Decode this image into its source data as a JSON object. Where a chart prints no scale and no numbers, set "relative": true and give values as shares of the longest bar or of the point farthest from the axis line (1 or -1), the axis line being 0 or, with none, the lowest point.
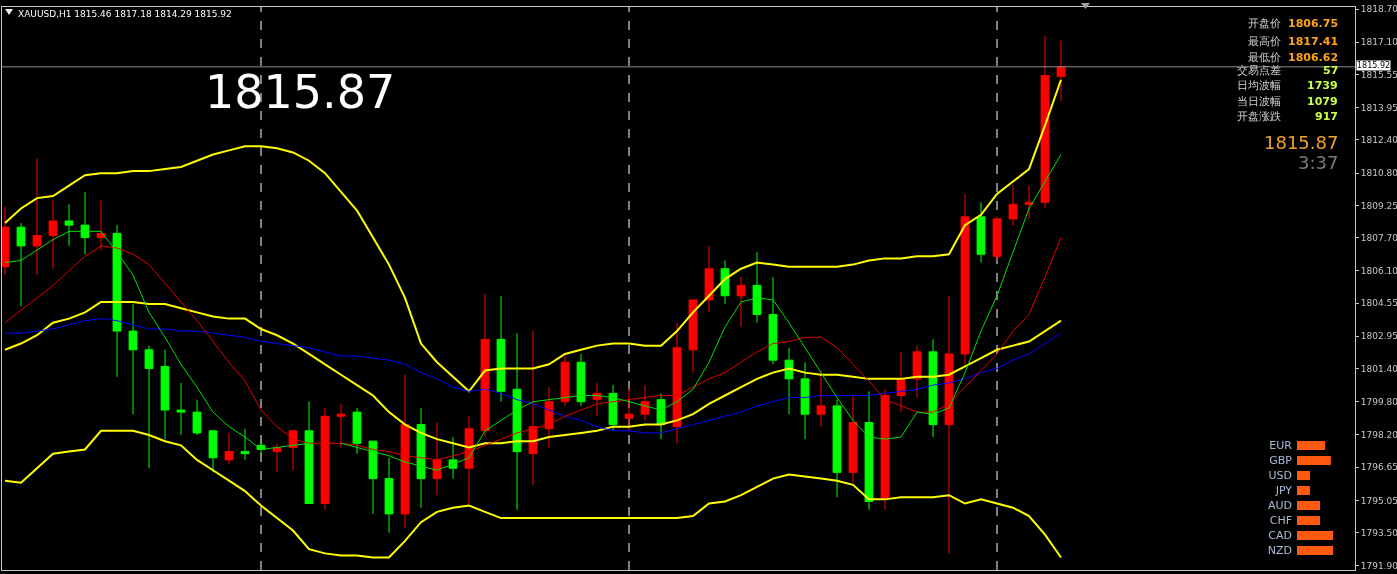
{
  "chart_data": [
    {
      "type": "candlestick",
      "title": "XAUUSD,H1 1815.46 1817.18 1814.29 1815.92",
      "annotations": [
        "1815.87",
        "开盘价",
        "1806.75",
        "最高价",
        "1817.41",
        "最低价",
        "1806.62",
        "交易点差",
        "57",
        "日均波幅",
        "1739",
        "当日波幅",
        "1079",
        "开盘涨跌",
        "917",
        "1815.87",
        "3:37"
      ],
      "categories": [
        null,
        null,
        null,
        null,
        null,
        null,
        null,
        null,
        null,
        null,
        null,
        null,
        null,
        null,
        null,
        null,
        null,
        null,
        null,
        null,
        null,
        null,
        null,
        null,
        null,
        null,
        null,
        null,
        null,
        null,
        null,
        null,
        null,
        null,
        null,
        null,
        null,
        null,
        null,
        null,
        null,
        null,
        null,
        null,
        null,
        null,
        null,
        null,
        null,
        null,
        null,
        null,
        null,
        null,
        null,
        null,
        null,
        null,
        null,
        null,
        null,
        null,
        null,
        null,
        null,
        null,
        null
      ],
      "ohlc": [
        [
          1806.3,
          1809.2,
          1805.9,
          1808.2
        ],
        [
          1808.2,
          1808.4,
          1804.4,
          1807.3
        ],
        [
          1807.3,
          1811.5,
          1805.9,
          1807.8
        ],
        [
          1807.8,
          1809.5,
          1806.2,
          1808.5
        ],
        [
          1808.5,
          1809.3,
          1807.3,
          1808.3
        ],
        [
          1808.3,
          1809.9,
          1806.9,
          1807.7
        ],
        [
          1807.7,
          1809.5,
          1807.1,
          1807.9
        ],
        [
          1807.9,
          1808.3,
          1801.0,
          1803.2
        ],
        [
          1803.2,
          1804.5,
          1799.2,
          1802.3
        ],
        [
          1802.3,
          1802.5,
          1796.6,
          1801.4
        ],
        [
          1801.5,
          1802.3,
          1798.0,
          1799.4
        ],
        [
          1799.4,
          1800.7,
          1798.2,
          1799.3
        ],
        [
          1799.3,
          1799.9,
          1798.2,
          1798.3
        ],
        [
          1798.4,
          1798.4,
          1796.4,
          1797.1
        ],
        [
          1797.0,
          1798.3,
          1796.8,
          1797.4
        ],
        [
          1797.4,
          1798.5,
          1797.0,
          1797.3
        ],
        [
          1797.7,
          1797.9,
          1797.3,
          1797.5
        ],
        [
          1797.4,
          1797.8,
          1796.4,
          1797.6
        ],
        [
          1797.6,
          1798.4,
          1796.5,
          1798.4
        ],
        [
          1798.4,
          1799.8,
          1794.9,
          1794.9
        ],
        [
          1794.9,
          1799.5,
          1794.6,
          1799.1
        ],
        [
          1799.1,
          1799.7,
          1797.6,
          1799.2
        ],
        [
          1799.3,
          1799.5,
          1797.3,
          1797.8
        ],
        [
          1797.9,
          1797.9,
          1794.4,
          1796.1
        ],
        [
          1796.1,
          1797.1,
          1793.5,
          1794.4
        ],
        [
          1794.4,
          1801.1,
          1793.7,
          1798.7
        ],
        [
          1798.7,
          1799.5,
          1794.7,
          1796.1
        ],
        [
          1796.1,
          1798.8,
          1795.3,
          1797.0
        ],
        [
          1797.0,
          1798.1,
          1796.1,
          1796.6
        ],
        [
          1796.6,
          1799.1,
          1794.9,
          1798.5
        ],
        [
          1798.4,
          1805.0,
          1798.1,
          1802.8
        ],
        [
          1802.8,
          1804.9,
          1799.8,
          1800.3
        ],
        [
          1800.4,
          1803.1,
          1794.6,
          1797.4
        ],
        [
          1797.3,
          1803.2,
          1795.8,
          1798.6
        ],
        [
          1798.5,
          1800.5,
          1797.6,
          1799.8
        ],
        [
          1799.8,
          1802.0,
          1799.6,
          1801.7
        ],
        [
          1801.7,
          1802.1,
          1799.6,
          1799.8
        ],
        [
          1799.9,
          1800.7,
          1799.1,
          1800.2
        ],
        [
          1800.2,
          1800.6,
          1798.4,
          1798.7
        ],
        [
          1799.0,
          1800.5,
          1798.4,
          1799.2
        ],
        [
          1799.2,
          1800.6,
          1798.9,
          1799.8
        ],
        [
          1799.9,
          1800.2,
          1798.0,
          1798.7
        ],
        [
          1798.6,
          1803.6,
          1797.8,
          1802.4
        ],
        [
          1802.3,
          1804.7,
          1801.2,
          1804.7
        ],
        [
          1804.7,
          1807.3,
          1804.1,
          1806.2
        ],
        [
          1806.2,
          1806.6,
          1804.5,
          1804.9
        ],
        [
          1804.9,
          1805.8,
          1803.4,
          1805.4
        ],
        [
          1805.4,
          1807.0,
          1803.6,
          1804.0
        ],
        [
          1804.0,
          1805.8,
          1801.6,
          1801.8
        ],
        [
          1801.8,
          1802.4,
          1799.2,
          1800.9
        ],
        [
          1800.9,
          1801.7,
          1798.0,
          1799.2
        ],
        [
          1799.2,
          1801.3,
          1798.6,
          1799.6
        ],
        [
          1799.6,
          1799.9,
          1795.2,
          1796.4
        ],
        [
          1796.4,
          1800.1,
          1795.9,
          1798.8
        ],
        [
          1798.8,
          1800.3,
          1794.6,
          1795.0
        ],
        [
          1795.1,
          1800.4,
          1794.6,
          1800.1
        ],
        [
          1800.1,
          1802.2,
          1799.3,
          1800.9
        ],
        [
          1800.9,
          1802.5,
          1800.0,
          1802.2
        ],
        [
          1802.2,
          1802.8,
          1798.1,
          1798.7
        ],
        [
          1798.7,
          1804.9,
          1792.5,
          1802.1
        ],
        [
          1802.1,
          1809.8,
          1801.6,
          1808.7
        ],
        [
          1808.7,
          1809.4,
          1806.5,
          1806.9
        ],
        [
          1806.8,
          1808.7,
          1806.6,
          1808.6
        ],
        [
          1808.6,
          1810.2,
          1808.3,
          1809.3
        ],
        [
          1809.3,
          1810.2,
          1808.6,
          1809.4
        ],
        [
          1809.4,
          1817.4,
          1809.1,
          1815.5
        ],
        [
          1815.46,
          1817.18,
          1814.29,
          1815.92
        ]
      ],
      "series": [
        {
          "type": "line",
          "color": "#ffff00",
          "values": [
            1808.4,
            1809.1,
            1809.6,
            1809.7,
            1810.2,
            1810.7,
            1810.8,
            1810.8,
            1810.9,
            1810.9,
            1811.0,
            1811.1,
            1811.4,
            1811.7,
            1811.9,
            1812.1,
            1812.1,
            1812.0,
            1811.8,
            1811.4,
            1810.8,
            1809.9,
            1809.0,
            1807.7,
            1806.4,
            1804.8,
            1802.6,
            1801.7,
            1801.0,
            1800.3,
            1801.3,
            1801.4,
            1801.4,
            1801.4,
            1801.6,
            1802.1,
            1802.3,
            1802.5,
            1802.6,
            1802.6,
            1802.5,
            1802.5,
            1803.2,
            1804.1,
            1804.9,
            1805.7,
            1806.2,
            1806.5,
            1806.4,
            1806.3,
            1806.3,
            1806.3,
            1806.3,
            1806.4,
            1806.6,
            1806.7,
            1806.7,
            1806.8,
            1806.8,
            1806.9,
            1808.3,
            1808.8,
            1809.8,
            1810.4,
            1811.0,
            1813.1,
            1815.3
          ]
        },
        {
          "type": "line",
          "color": "#ffff00",
          "values": [
            1802.3,
            1802.6,
            1803.0,
            1803.6,
            1803.8,
            1804.1,
            1804.6,
            1804.6,
            1804.6,
            1804.5,
            1804.5,
            1804.3,
            1804.1,
            1803.9,
            1803.8,
            1803.8,
            1803.3,
            1803.0,
            1802.6,
            1802.1,
            1801.6,
            1801.1,
            1800.6,
            1800.1,
            1799.3,
            1798.7,
            1798.3,
            1798.0,
            1797.8,
            1797.6,
            1797.8,
            1797.8,
            1797.9,
            1797.9,
            1798.1,
            1798.2,
            1798.3,
            1798.4,
            1798.6,
            1798.6,
            1798.7,
            1798.7,
            1798.9,
            1799.2,
            1799.7,
            1800.1,
            1800.5,
            1800.9,
            1801.2,
            1801.4,
            1801.2,
            1801.1,
            1801.1,
            1801.0,
            1800.9,
            1800.9,
            1800.9,
            1801.0,
            1801.0,
            1801.1,
            1801.5,
            1801.9,
            1802.3,
            1802.5,
            1802.7,
            1803.2,
            1803.7
          ]
        },
        {
          "type": "line",
          "color": "#ffff00",
          "values": [
            1796.0,
            1795.9,
            1796.6,
            1797.3,
            1797.4,
            1797.5,
            1798.4,
            1798.4,
            1798.4,
            1798.2,
            1797.9,
            1797.7,
            1797.0,
            1796.5,
            1796.0,
            1795.5,
            1794.8,
            1794.2,
            1793.6,
            1792.7,
            1792.5,
            1792.4,
            1792.4,
            1792.3,
            1792.3,
            1793.1,
            1794.0,
            1794.5,
            1794.7,
            1794.8,
            1794.5,
            1794.2,
            1794.2,
            1794.2,
            1794.2,
            1794.2,
            1794.2,
            1794.2,
            1794.2,
            1794.2,
            1794.2,
            1794.2,
            1794.2,
            1794.3,
            1794.9,
            1795.0,
            1795.3,
            1795.7,
            1796.1,
            1796.3,
            1796.2,
            1796.1,
            1796.0,
            1795.8,
            1795.1,
            1795.1,
            1795.2,
            1795.2,
            1795.2,
            1795.3,
            1794.9,
            1795.1,
            1794.9,
            1794.7,
            1794.3,
            1793.4,
            1792.3
          ]
        },
        {
          "type": "line",
          "color": "#0000ff",
          "values": [
            1803.1,
            1803.1,
            1803.2,
            1803.3,
            1803.5,
            1803.7,
            1803.8,
            1803.7,
            1803.5,
            1803.3,
            1803.3,
            1803.2,
            1803.2,
            1803.1,
            1803.0,
            1802.9,
            1802.7,
            1802.6,
            1802.5,
            1802.4,
            1802.2,
            1802.0,
            1802.0,
            1801.9,
            1801.8,
            1801.6,
            1801.2,
            1800.9,
            1800.5,
            1800.3,
            1800.4,
            1800.2,
            1799.9,
            1799.7,
            1799.4,
            1799.1,
            1798.9,
            1798.6,
            1798.4,
            1798.4,
            1798.3,
            1798.3,
            1798.5,
            1798.7,
            1798.9,
            1799.1,
            1799.3,
            1799.6,
            1799.8,
            1800.0,
            1800.0,
            1800.1,
            1800.1,
            1800.1,
            1800.1,
            1800.2,
            1800.3,
            1800.4,
            1800.6,
            1800.7,
            1800.9,
            1801.2,
            1801.4,
            1801.8,
            1802.1,
            1802.6,
            1803.1
          ]
        },
        {
          "type": "line",
          "color": "#e00000",
          "values": [
            1803.6,
            1804.2,
            1804.8,
            1805.4,
            1806.1,
            1806.8,
            1807.3,
            1807.2,
            1806.9,
            1806.4,
            1805.5,
            1804.6,
            1803.7,
            1802.7,
            1801.7,
            1800.8,
            1799.4,
            1798.6,
            1798.0,
            1797.8,
            1797.8,
            1797.8,
            1797.7,
            1797.5,
            1797.4,
            1797.2,
            1797.1,
            1797.0,
            1797.2,
            1797.4,
            1797.7,
            1798.0,
            1798.3,
            1798.5,
            1798.7,
            1799.1,
            1799.4,
            1799.7,
            1799.8,
            1799.9,
            1800.0,
            1800.1,
            1800.1,
            1800.5,
            1800.9,
            1801.2,
            1801.7,
            1802.2,
            1802.6,
            1802.7,
            1802.9,
            1802.9,
            1802.4,
            1801.6,
            1800.8,
            1799.9,
            1799.6,
            1799.3,
            1799.3,
            1799.7,
            1800.5,
            1801.3,
            1802.1,
            1803.2,
            1804.0,
            1805.8,
            1807.7
          ]
        },
        {
          "type": "line",
          "color": "#00e000",
          "values": [
            1806.5,
            1806.6,
            1807.1,
            1807.6,
            1808.0,
            1808.0,
            1808.0,
            1807.0,
            1805.9,
            1804.1,
            1802.9,
            1801.6,
            1800.5,
            1799.3,
            1798.6,
            1798.1,
            1797.5,
            1797.6,
            1797.7,
            1797.8,
            null,
            1797.8,
            1797.6,
            1797.4,
            1797.2,
            1796.9,
            1796.7,
            1796.5,
            1796.8,
            1797.1,
            1798.4,
            1798.9,
            1799.4,
            1799.8,
            1799.9,
            1800.0,
            1800.1,
            1800.1,
            1800.0,
            1799.8,
            1799.6,
            1799.4,
            1799.8,
            1800.4,
            1801.7,
            1803.4,
            1804.6,
            1804.8,
            1804.7,
            1803.6,
            1802.4,
            1801.2,
            1800.0,
            1798.9,
            1798.1,
            1798.0,
            1798.1,
            1799.3,
            1799.2,
            1799.5,
            1801.2,
            1803.2,
            1804.9,
            1807.0,
            1809.1,
            1810.4,
            1811.7
          ]
        }
      ],
      "ylim": [
        1791.7,
        1818.8
      ],
      "yticks": [
        {
          "value": 1818.7,
          "label": "1818.70"
        },
        {
          "value": 1817.1,
          "label": "1817.10"
        },
        {
          "value": 1815.55,
          "label": "1815.55"
        },
        {
          "value": 1813.95,
          "label": "1813.95"
        },
        {
          "value": 1812.4,
          "label": "1812.40"
        },
        {
          "value": 1810.8,
          "label": "1810.80"
        },
        {
          "value": 1809.25,
          "label": "1809.25"
        },
        {
          "value": 1807.7,
          "label": "1807.70"
        },
        {
          "value": 1806.1,
          "label": "1806.10"
        },
        {
          "value": 1804.55,
          "label": "1804.55"
        },
        {
          "value": 1802.95,
          "label": "1802.95"
        },
        {
          "value": 1801.4,
          "label": "1801.40"
        },
        {
          "value": 1799.8,
          "label": "1799.80"
        },
        {
          "value": 1798.2,
          "label": "1798.20"
        },
        {
          "value": 1796.65,
          "label": "1796.65"
        },
        {
          "value": 1795.05,
          "label": "1795.05"
        },
        {
          "value": 1793.5,
          "label": "1793.50"
        },
        {
          "value": 1791.9,
          "label": "1791.90"
        }
      ],
      "tick_labels": "y",
      "grid": "x",
      "ref_lines": [
        {
          "axis": "y",
          "value": 1815.92,
          "label": "1815.92",
          "color": "#8c8c8c"
        }
      ]
    },
    {
      "type": "bar",
      "orientation": "horizontal",
      "relative": true,
      "color": "#ff5a10",
      "categories": [
        "EUR",
        "GBP",
        "USD",
        "JPY",
        "AUD",
        "CHF",
        "CAD",
        "NZD"
      ],
      "values": [
        0.78,
        0.94,
        0.36,
        0.36,
        0.64,
        0.64,
        1,
        1
      ]
    }
  ]
}
